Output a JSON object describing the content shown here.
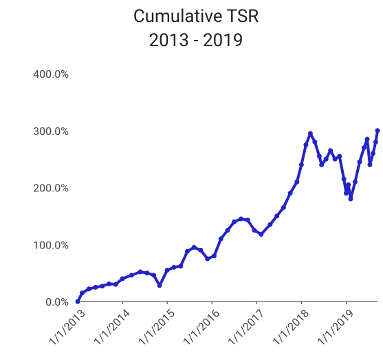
{
  "chart_data": {
    "type": "line",
    "title": "Cumulative TSR",
    "subtitle": "2013 - 2019",
    "x": [
      2013.0,
      2013.1,
      2013.25,
      2013.4,
      2013.55,
      2013.7,
      2013.85,
      2014.0,
      2014.2,
      2014.4,
      2014.55,
      2014.7,
      2014.83,
      2015.0,
      2015.15,
      2015.3,
      2015.45,
      2015.6,
      2015.75,
      2015.9,
      2016.05,
      2016.2,
      2016.35,
      2016.5,
      2016.65,
      2016.8,
      2016.95,
      2017.1,
      2017.3,
      2017.45,
      2017.6,
      2017.75,
      2017.9,
      2018.0,
      2018.1,
      2018.2,
      2018.3,
      2018.4,
      2018.45,
      2018.55,
      2018.65,
      2018.75,
      2018.85,
      2018.95,
      2019.0,
      2019.05,
      2019.1,
      2019.2,
      2019.3,
      2019.4,
      2019.47,
      2019.53,
      2019.6,
      2019.66,
      2019.7
    ],
    "series": [
      {
        "name": "Cumulative TSR",
        "color": "#2323c8",
        "values": [
          0,
          15,
          22,
          25,
          27,
          31,
          30,
          40,
          46,
          52,
          50,
          46,
          28,
          55,
          60,
          62,
          88,
          95,
          90,
          75,
          80,
          110,
          125,
          140,
          145,
          143,
          125,
          118,
          135,
          150,
          165,
          190,
          210,
          240,
          275,
          295,
          280,
          255,
          240,
          250,
          265,
          250,
          255,
          215,
          190,
          205,
          180,
          210,
          245,
          270,
          285,
          240,
          260,
          280,
          300
        ]
      }
    ],
    "ylim": [
      0,
      400
    ],
    "yticks": [
      {
        "value": 0,
        "label": "0.0%"
      },
      {
        "value": 100,
        "label": "100.0%"
      },
      {
        "value": 200,
        "label": "200.0%"
      },
      {
        "value": 300,
        "label": "300.0%"
      },
      {
        "value": 400,
        "label": "400.0%"
      }
    ],
    "xlim": [
      2013,
      2019.7
    ],
    "xticks": [
      {
        "value": 2013,
        "label": "1/1/2013"
      },
      {
        "value": 2014,
        "label": "1/1/2014"
      },
      {
        "value": 2015,
        "label": "1/1/2015"
      },
      {
        "value": 2016,
        "label": "1/1/2016"
      },
      {
        "value": 2017,
        "label": "1/1/2017"
      },
      {
        "value": 2018,
        "label": "1/1/2018"
      },
      {
        "value": 2019,
        "label": "1/1/2019"
      }
    ]
  }
}
